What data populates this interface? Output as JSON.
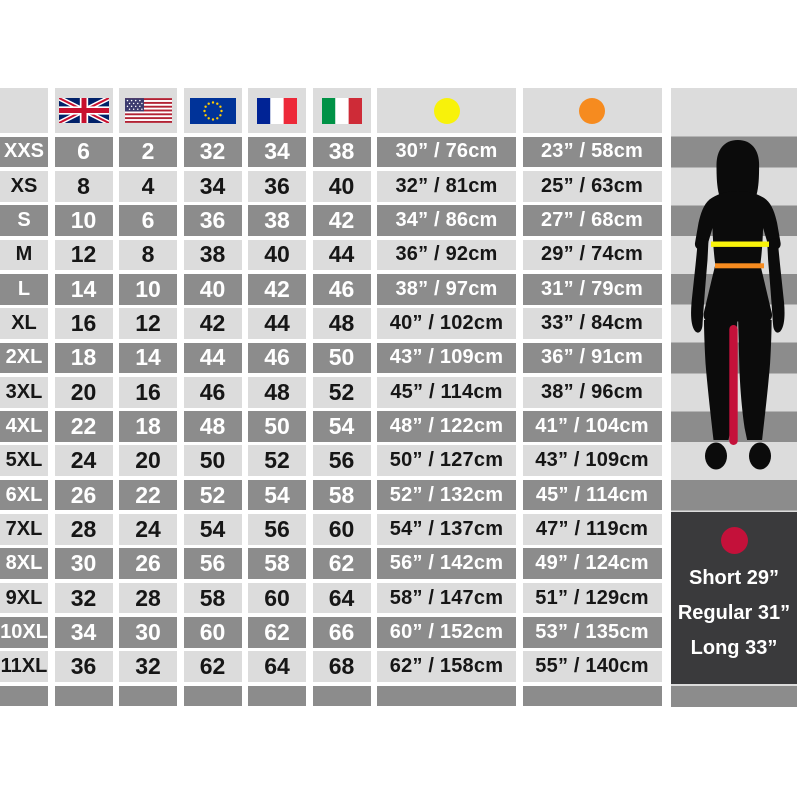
{
  "colors": {
    "row_dark": "#8c8c8c",
    "row_light": "#dcdcdc",
    "panel_dark": "#3a3a3c",
    "chest_dot": "#f8f20a",
    "waist_dot": "#f68b1f",
    "inseam_red": "#c4113a",
    "silhouette": "#0b0b0b"
  },
  "header": {
    "flags": [
      "flag-uk",
      "flag-us",
      "flag-eu",
      "flag-fr",
      "flag-it"
    ],
    "chest_marker": "yellow-dot",
    "waist_marker": "orange-dot"
  },
  "chart_data": {
    "type": "table",
    "columns": [
      "size",
      "uk",
      "us",
      "eu",
      "fr",
      "it",
      "chest",
      "waist"
    ],
    "rows": [
      {
        "size": "XXS",
        "uk": "6",
        "us": "2",
        "eu": "32",
        "fr": "34",
        "it": "38",
        "chest": "30” / 76cm",
        "waist": "23” / 58cm"
      },
      {
        "size": "XS",
        "uk": "8",
        "us": "4",
        "eu": "34",
        "fr": "36",
        "it": "40",
        "chest": "32” / 81cm",
        "waist": "25” / 63cm"
      },
      {
        "size": "S",
        "uk": "10",
        "us": "6",
        "eu": "36",
        "fr": "38",
        "it": "42",
        "chest": "34” / 86cm",
        "waist": "27” / 68cm"
      },
      {
        "size": "M",
        "uk": "12",
        "us": "8",
        "eu": "38",
        "fr": "40",
        "it": "44",
        "chest": "36” / 92cm",
        "waist": "29” / 74cm"
      },
      {
        "size": "L",
        "uk": "14",
        "us": "10",
        "eu": "40",
        "fr": "42",
        "it": "46",
        "chest": "38” / 97cm",
        "waist": "31” / 79cm"
      },
      {
        "size": "XL",
        "uk": "16",
        "us": "12",
        "eu": "42",
        "fr": "44",
        "it": "48",
        "chest": "40” / 102cm",
        "waist": "33” / 84cm"
      },
      {
        "size": "2XL",
        "uk": "18",
        "us": "14",
        "eu": "44",
        "fr": "46",
        "it": "50",
        "chest": "43” / 109cm",
        "waist": "36” / 91cm"
      },
      {
        "size": "3XL",
        "uk": "20",
        "us": "16",
        "eu": "46",
        "fr": "48",
        "it": "52",
        "chest": "45” / 114cm",
        "waist": "38” / 96cm"
      },
      {
        "size": "4XL",
        "uk": "22",
        "us": "18",
        "eu": "48",
        "fr": "50",
        "it": "54",
        "chest": "48” / 122cm",
        "waist": "41” / 104cm"
      },
      {
        "size": "5XL",
        "uk": "24",
        "us": "20",
        "eu": "50",
        "fr": "52",
        "it": "56",
        "chest": "50” / 127cm",
        "waist": "43” / 109cm"
      },
      {
        "size": "6XL",
        "uk": "26",
        "us": "22",
        "eu": "52",
        "fr": "54",
        "it": "58",
        "chest": "52” / 132cm",
        "waist": "45” / 114cm"
      },
      {
        "size": "7XL",
        "uk": "28",
        "us": "24",
        "eu": "54",
        "fr": "56",
        "it": "60",
        "chest": "54” / 137cm",
        "waist": "47” / 119cm"
      },
      {
        "size": "8XL",
        "uk": "30",
        "us": "26",
        "eu": "56",
        "fr": "58",
        "it": "62",
        "chest": "56” / 142cm",
        "waist": "49” / 124cm"
      },
      {
        "size": "9XL",
        "uk": "32",
        "us": "28",
        "eu": "58",
        "fr": "60",
        "it": "64",
        "chest": "58” / 147cm",
        "waist": "51” / 129cm"
      },
      {
        "size": "10XL",
        "uk": "34",
        "us": "30",
        "eu": "60",
        "fr": "62",
        "it": "66",
        "chest": "60” / 152cm",
        "waist": "53” / 135cm"
      },
      {
        "size": "11XL",
        "uk": "36",
        "us": "32",
        "eu": "62",
        "fr": "64",
        "it": "68",
        "chest": "62” / 158cm",
        "waist": "55” / 140cm"
      }
    ]
  },
  "inseam_panel": {
    "lines": [
      "Short 29”",
      "Regular 31”",
      "Long 33”"
    ]
  }
}
